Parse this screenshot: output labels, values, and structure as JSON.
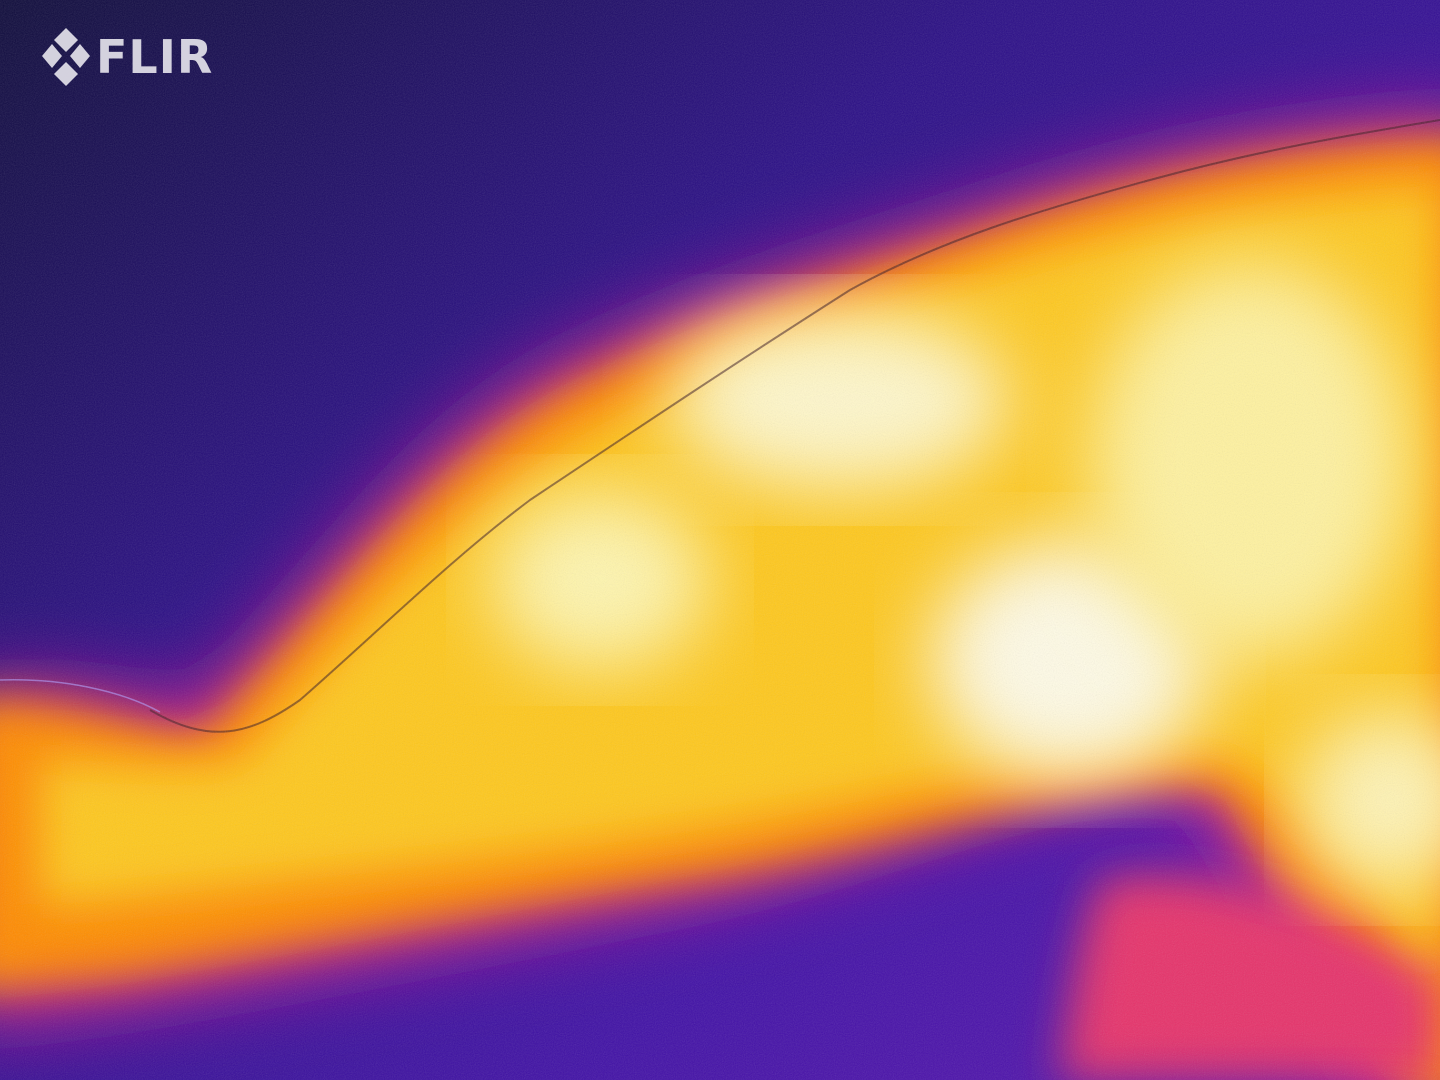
{
  "brand": {
    "logo_text": "FLIR",
    "logo_icon": "flir-diamond-logo-icon"
  },
  "palette": {
    "cold": "#1a0a5e",
    "cool": "#4b10a8",
    "warm": "#e0207a",
    "hot": "#ff8a00",
    "hotter": "#ffd21a",
    "hottest": "#fdfbe8"
  }
}
